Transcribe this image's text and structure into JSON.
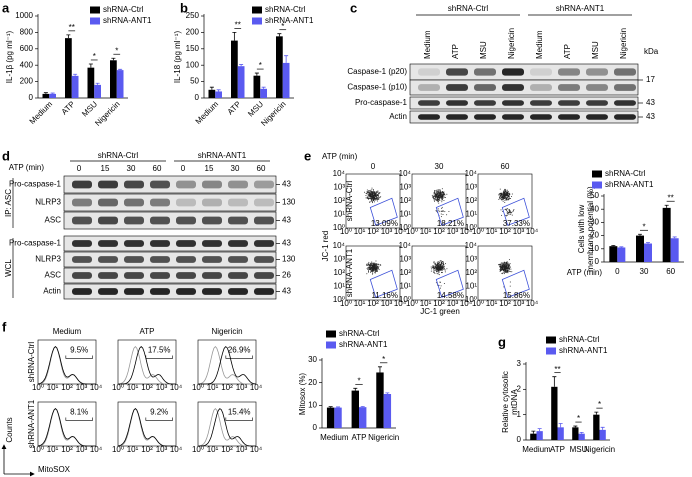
{
  "chart_data": [
    {
      "type": "bar",
      "panel": "a",
      "ylabel": "IL-1β (pg ml⁻¹)",
      "categories": [
        "Medium",
        "ATP",
        "MSU",
        "Nigericin"
      ],
      "series": [
        {
          "name": "shRNA-Ctrl",
          "color": "#000000",
          "values": [
            50,
            730,
            370,
            460
          ],
          "errors": [
            15,
            40,
            45,
            25
          ]
        },
        {
          "name": "shRNA-ANT1",
          "color": "#5a5af0",
          "values": [
            50,
            270,
            160,
            340
          ],
          "errors": [
            10,
            20,
            20,
            10
          ]
        }
      ],
      "ylim": [
        0,
        1000
      ],
      "yticks": [
        0,
        200,
        400,
        600,
        800,
        1000
      ],
      "significance": [
        "",
        "**",
        "*",
        "*"
      ]
    },
    {
      "type": "bar",
      "panel": "b",
      "ylabel": "IL-18 (pg ml⁻¹)",
      "categories": [
        "Medium",
        "ATP",
        "MSU",
        "Nigericin"
      ],
      "series": [
        {
          "name": "shRNA-Ctrl",
          "color": "#000000",
          "values": [
            25,
            175,
            68,
            188
          ],
          "errors": [
            8,
            25,
            8,
            8
          ]
        },
        {
          "name": "shRNA-ANT1",
          "color": "#5a5af0",
          "values": [
            20,
            97,
            28,
            107
          ],
          "errors": [
            5,
            5,
            5,
            22
          ]
        }
      ],
      "ylim": [
        0,
        250
      ],
      "yticks": [
        0,
        50,
        100,
        150,
        200,
        250
      ],
      "significance": [
        "",
        "**",
        "*",
        "*"
      ]
    },
    {
      "type": "bar",
      "ylabel": [
        "Cells with low",
        "membrane potential (%)"
      ],
      "xlabel": "ATP (min)",
      "categories": [
        "0",
        "30",
        "60"
      ],
      "series": [
        {
          "name": "shRNA-Ctrl",
          "color": "#000000",
          "values": [
            12,
            20,
            41
          ],
          "errors": [
            0.5,
            1,
            2
          ]
        },
        {
          "name": "shRNA-ANT1",
          "color": "#5a5af0",
          "values": [
            11,
            14,
            18
          ],
          "errors": [
            0.5,
            0.8,
            1
          ]
        }
      ],
      "ylim": [
        0,
        50
      ],
      "yticks": [
        0,
        10,
        20,
        30,
        40,
        50
      ],
      "significance": [
        "",
        "*",
        "**"
      ]
    },
    {
      "type": "bar",
      "ylabel": "Mitosox (%)",
      "categories": [
        "Medium",
        "ATP",
        "Nigericin"
      ],
      "series": [
        {
          "name": "shRNA-Ctrl",
          "color": "#000000",
          "values": [
            9,
            16.5,
            24.5
          ],
          "errors": [
            0.4,
            1,
            2.5
          ]
        },
        {
          "name": "shRNA-ANT1",
          "color": "#5a5af0",
          "values": [
            9,
            9.2,
            15
          ],
          "errors": [
            0.3,
            0.3,
            0.5
          ]
        }
      ],
      "ylim": [
        0,
        30
      ],
      "yticks": [
        0,
        10,
        20,
        30
      ],
      "significance": [
        "",
        "*",
        "*"
      ]
    },
    {
      "type": "bar",
      "panel": "g",
      "ylabel": [
        "Relative cytosolic",
        "mtDNA"
      ],
      "categories": [
        "Medium",
        "ATP",
        "MSU",
        "Nigericin"
      ],
      "series": [
        {
          "name": "shRNA-Ctrl",
          "color": "#000000",
          "values": [
            0.25,
            2.1,
            0.5,
            1.0
          ],
          "errors": [
            0.1,
            0.4,
            0.05,
            0.1
          ]
        },
        {
          "name": "shRNA-ANT1",
          "color": "#5a5af0",
          "values": [
            0.35,
            0.5,
            0.25,
            0.4
          ],
          "errors": [
            0.1,
            0.15,
            0.05,
            0.1
          ]
        }
      ],
      "ylim": [
        0,
        3
      ],
      "yticks": [
        0,
        1,
        2,
        3
      ],
      "significance": [
        "",
        "**",
        "*",
        "*"
      ]
    }
  ],
  "blot_c": {
    "panel": "c",
    "groups": [
      "shRNA-Ctrl",
      "shRNA-ANT1"
    ],
    "lanes": [
      "Medium",
      "ATP",
      "MSU",
      "Nigericin",
      "Medium",
      "ATP",
      "MSU",
      "Nigericin"
    ],
    "unit": "kDa",
    "rows": [
      "Caspase-1 (p20)",
      "Caspase-1 (p10)",
      "Pro-caspase-1",
      "Actin"
    ],
    "markers": [
      17,
      43,
      43
    ]
  },
  "blot_d": {
    "panel": "d",
    "header": "ATP (min)",
    "groups": [
      "shRNA-Ctrl",
      "shRNA-ANT1"
    ],
    "lanes": [
      "0",
      "15",
      "30",
      "60",
      "0",
      "15",
      "30",
      "60"
    ],
    "sections": [
      {
        "name": "IP: ASC",
        "rows": [
          "Pro-caspase-1",
          "NLRP3",
          "ASC"
        ],
        "markers": [
          43,
          130,
          43
        ]
      },
      {
        "name": "WCL",
        "rows": [
          "Pro-caspase-1",
          "NLRP3",
          "ASC",
          "Actin"
        ],
        "markers": [
          43,
          130,
          26,
          43
        ]
      }
    ]
  },
  "flow_e": {
    "panel": "e",
    "header": "ATP (min)",
    "columns": [
      "0",
      "30",
      "60"
    ],
    "rows": [
      "shRNA-Ctrl",
      "shRNA-ANT1"
    ],
    "gates": [
      [
        "13.09%",
        "18.21%",
        "37.33%"
      ],
      [
        "11.16%",
        "14.58%",
        "15.86%"
      ]
    ],
    "ylabel": "JC-1 red",
    "xlabel": "JC-1 green",
    "ticks": [
      "10⁰",
      "10¹",
      "10²",
      "10³",
      "10⁴"
    ]
  },
  "hist_f": {
    "panel": "f",
    "columns": [
      "Medium",
      "ATP",
      "Nigericin"
    ],
    "rows": [
      "shRNA-Ctrl",
      "shRNA-ANT1"
    ],
    "gates": [
      [
        "9.5%",
        "17.5%",
        "26.9%"
      ],
      [
        "8.1%",
        "9.2%",
        "15.4%"
      ]
    ],
    "ylabel": "Counts",
    "xlabel": "MitoSOX",
    "ticks": [
      "10⁰",
      "10¹",
      "10²",
      "10³",
      "10⁴"
    ]
  }
}
